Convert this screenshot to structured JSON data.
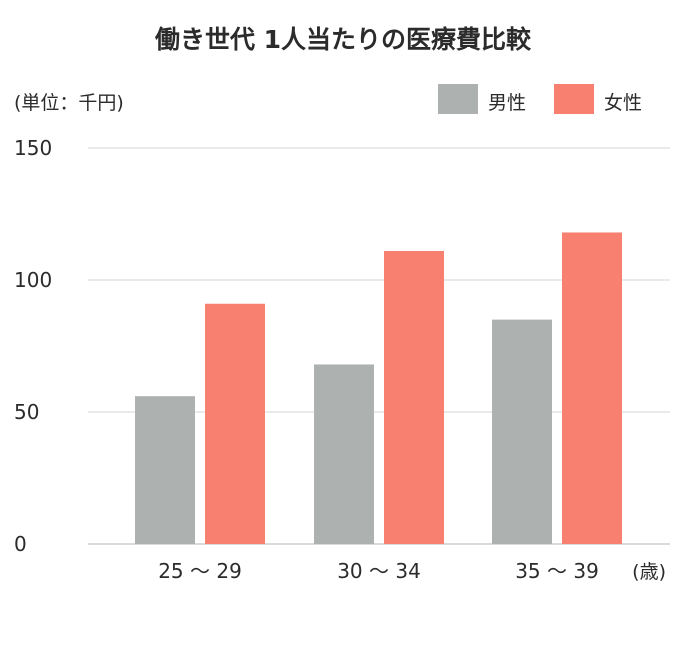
{
  "chart_data": {
    "type": "bar",
    "title": "働き世代 1人当たりの医療費比較",
    "ylabel": "(単位：千円)",
    "xlabel": "(歳)",
    "categories": [
      "25 〜 29",
      "30 〜 34",
      "35 〜 39"
    ],
    "series": [
      {
        "name": "男性",
        "values": [
          56,
          68,
          85
        ],
        "color": "#adb1b0"
      },
      {
        "name": "女性",
        "values": [
          91,
          111,
          118
        ],
        "color": "#f88070"
      }
    ],
    "ylim": [
      0,
      150
    ],
    "yticks": [
      0,
      50,
      100,
      150
    ],
    "grid": true,
    "legend": "top-right"
  },
  "colors": {
    "gridline": "#e3e3e3",
    "text": "#2b2b2b"
  }
}
